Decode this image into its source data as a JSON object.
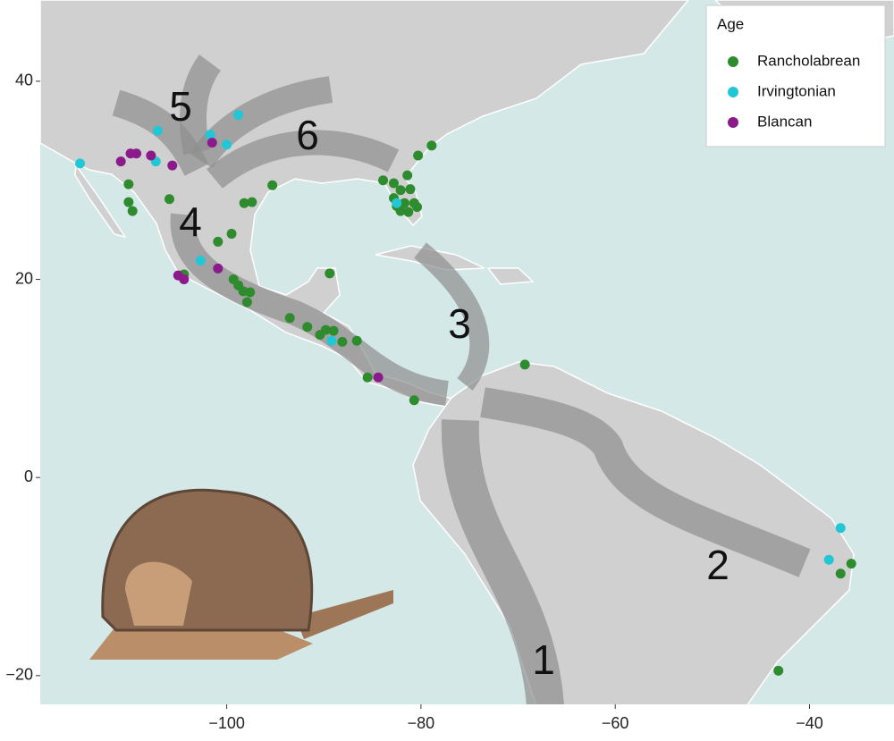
{
  "chart_data": {
    "type": "scatter",
    "legend_title": "Age",
    "legend_corner": "top-right",
    "annotations": [
      "1",
      "2",
      "3",
      "4",
      "5",
      "6"
    ],
    "xlim": [
      -119.2,
      -31.3
    ],
    "ylim": [
      -22.9,
      48.2
    ],
    "xticks": [
      {
        "value": -100,
        "label": "−100"
      },
      {
        "value": -80,
        "label": "−80"
      },
      {
        "value": -60,
        "label": "−60"
      },
      {
        "value": -40,
        "label": "−40"
      }
    ],
    "yticks": [
      {
        "value": -20,
        "label": "−20"
      },
      0,
      20,
      40
    ],
    "series": [
      {
        "name": "Rancholabrean",
        "color": "#2e8b2e",
        "x": [
          -110.1,
          -110.1,
          -109.7,
          -105.9,
          -98.2,
          -97.4,
          -95.3,
          -99.5,
          -100.9,
          -104.4,
          -99.3,
          -98.8,
          -98.3,
          -97.6,
          -97.9,
          -89.4,
          -93.5,
          -91.7,
          -90.4,
          -89.8,
          -89.0,
          -88.1,
          -86.6,
          -85.5,
          -80.7,
          -69.3,
          -78.9,
          -80.3,
          -83.9,
          -82.8,
          -81.4,
          -82.1,
          -81.1,
          -82.8,
          -81.7,
          -80.7,
          -82.1,
          -81.3,
          -80.4,
          -82.5,
          -36.8,
          -35.7,
          -43.2
        ],
        "y": [
          29.6,
          27.8,
          26.9,
          28.1,
          27.7,
          27.8,
          29.5,
          24.6,
          23.8,
          20.5,
          20.0,
          19.4,
          18.8,
          18.7,
          17.7,
          20.6,
          16.1,
          15.2,
          14.4,
          14.9,
          14.8,
          13.7,
          13.8,
          10.1,
          7.8,
          11.4,
          33.5,
          32.5,
          30.0,
          29.7,
          30.5,
          29.0,
          29.1,
          28.2,
          27.7,
          27.7,
          26.9,
          26.8,
          27.3,
          27.4,
          -9.7,
          -8.7,
          -19.5
        ]
      },
      {
        "name": "Irvingtonian",
        "color": "#22c7d6",
        "x": [
          -115.1,
          -107.1,
          -107.3,
          -101.7,
          -98.8,
          -100.0,
          -82.5,
          -102.7,
          -89.2,
          -36.8,
          -38.0
        ],
        "y": [
          31.7,
          35.0,
          31.9,
          34.6,
          36.6,
          33.6,
          27.7,
          21.9,
          13.8,
          -5.1,
          -8.3
        ]
      },
      {
        "name": "Blancan",
        "color": "#8b1a8b",
        "x": [
          -110.9,
          -109.9,
          -109.3,
          -107.8,
          -105.6,
          -101.5,
          -105.0,
          -104.4,
          -100.9,
          -84.4
        ],
        "y": [
          31.9,
          32.7,
          32.7,
          32.5,
          31.5,
          33.8,
          20.4,
          20.0,
          21.1,
          10.1
        ]
      }
    ]
  }
}
